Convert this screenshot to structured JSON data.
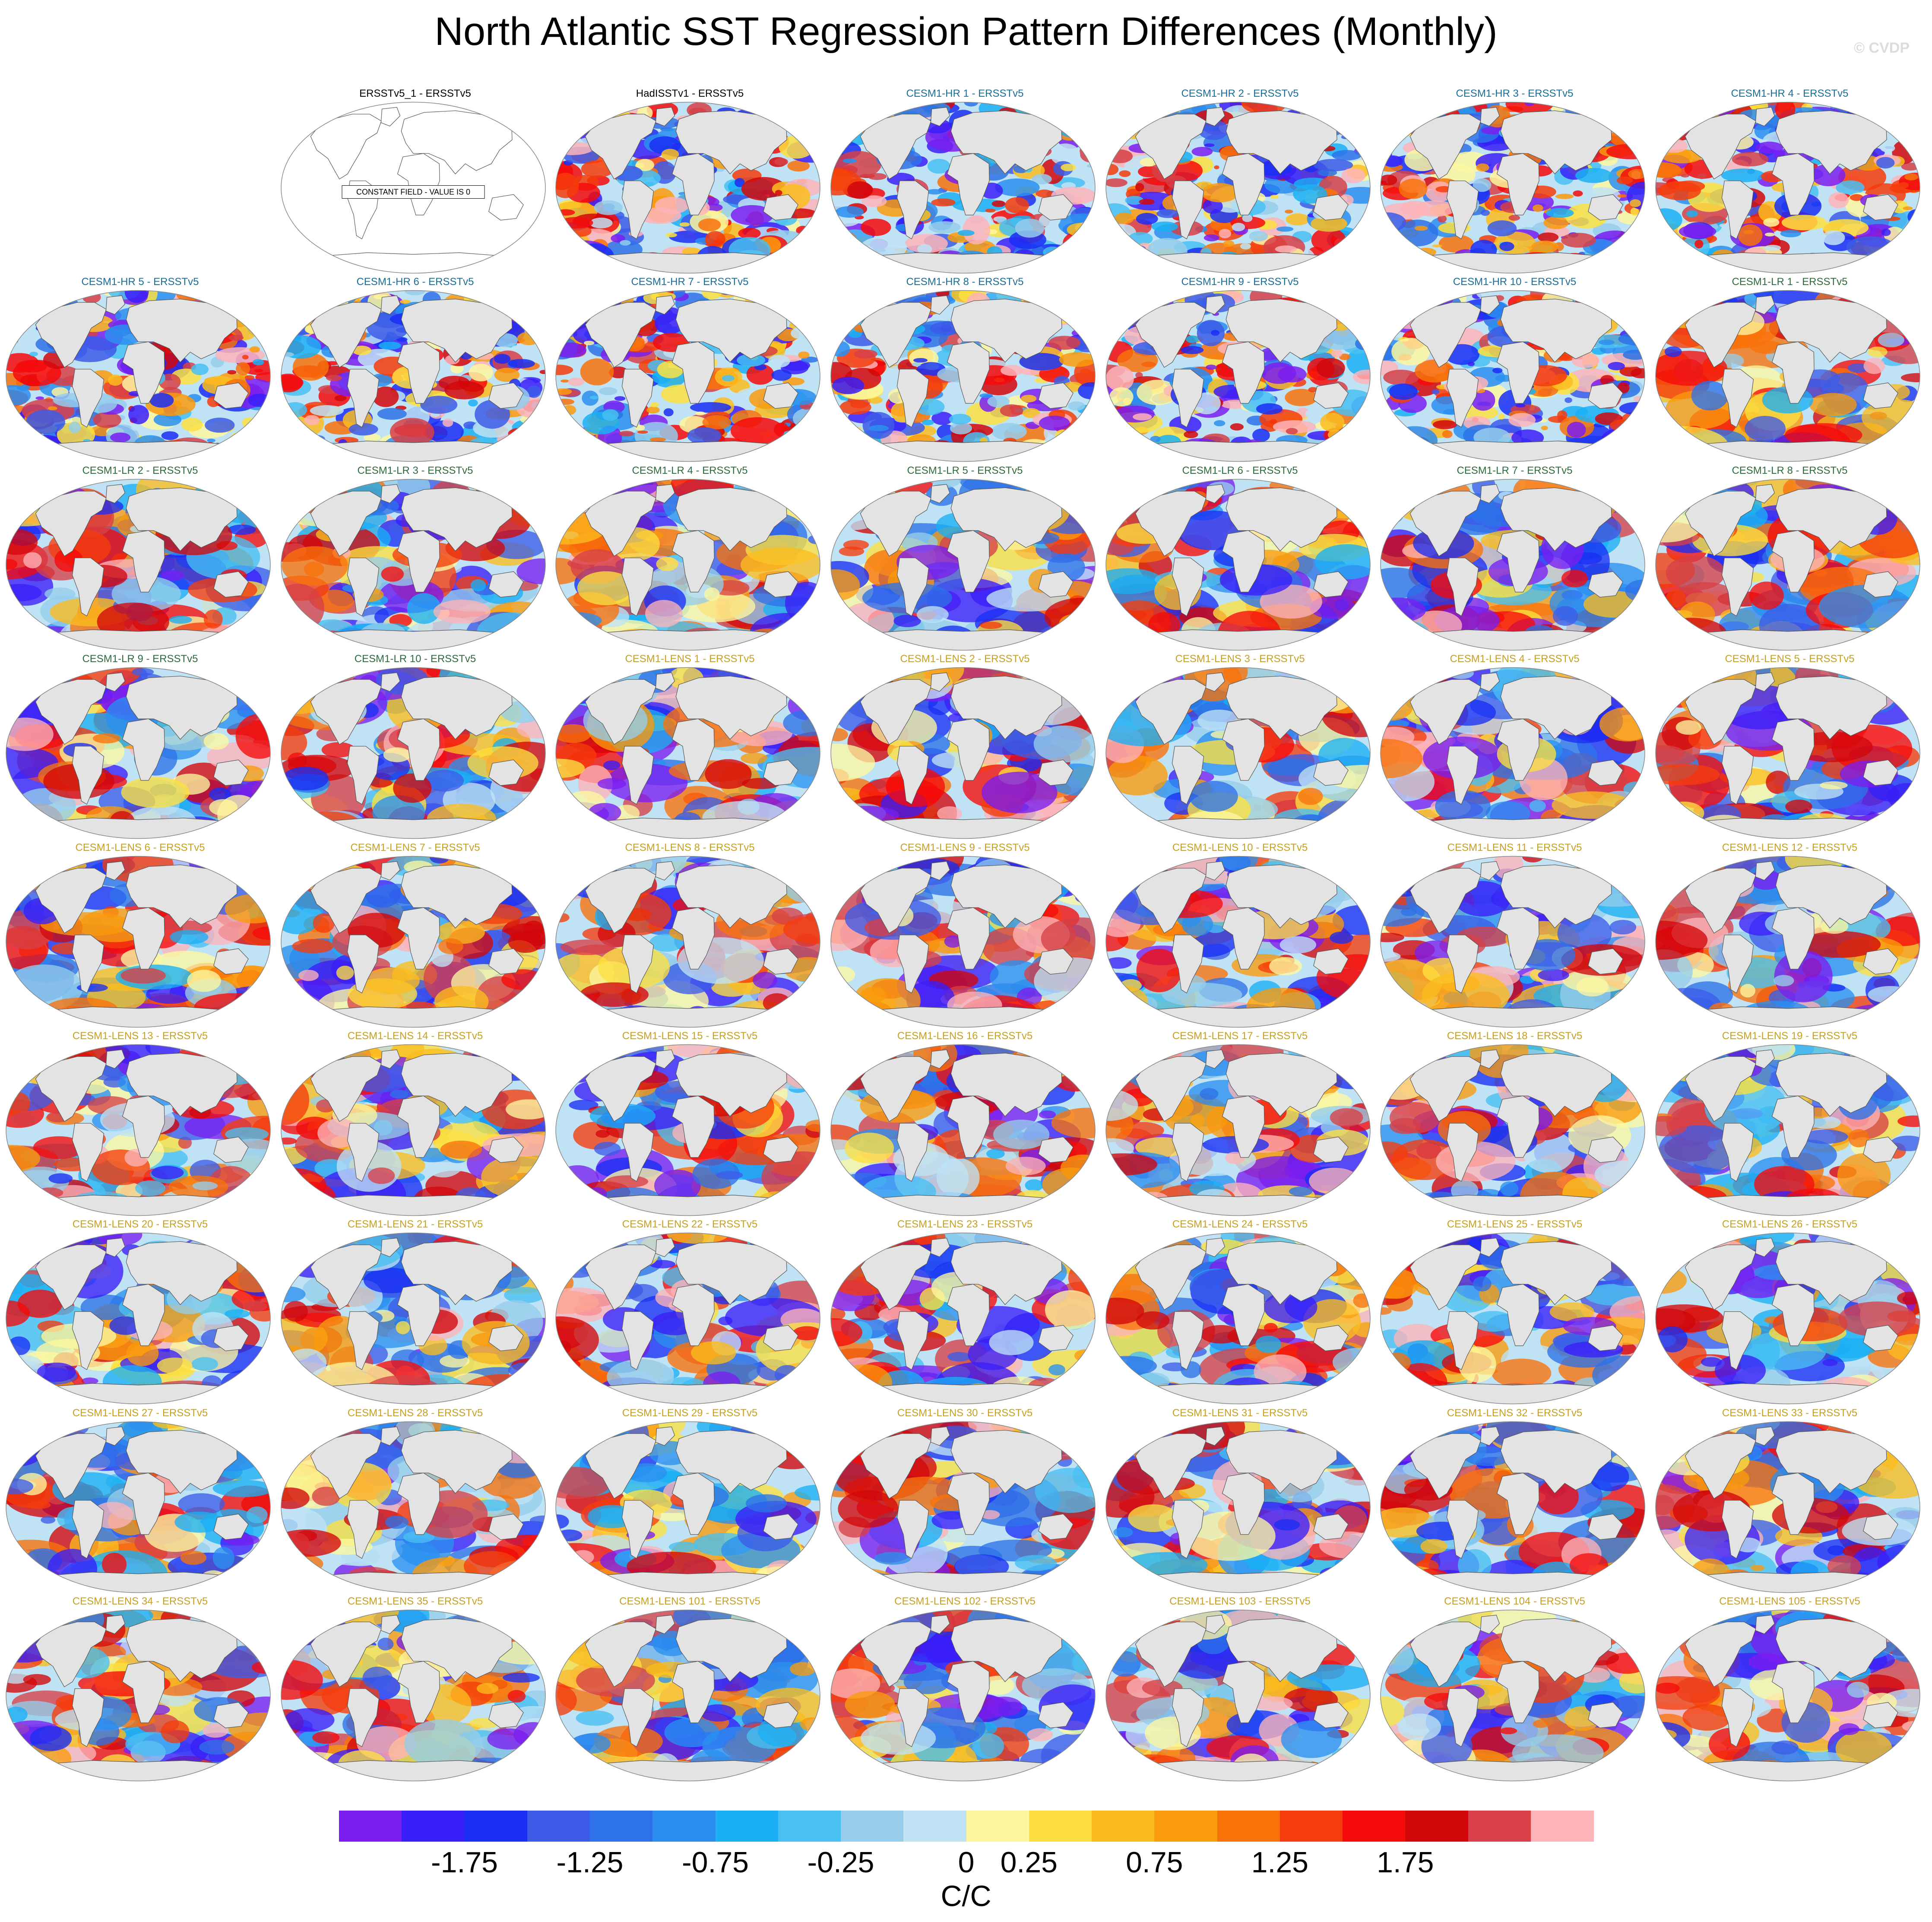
{
  "title": "North Atlantic SST Regression Pattern Differences (Monthly)",
  "credit": "© CVDP",
  "constant_field_note": "CONSTANT FIELD - VALUE IS 0",
  "colors": {
    "label_obs": "#000000",
    "label_hr": "#1a6e96",
    "label_lr": "#2e6b3c",
    "label_lens": "#c8a020",
    "land": "#e3e3e3",
    "coast": "#555555"
  },
  "panels": [
    {
      "label": "ERSSTv5_1 - ERSSTv5",
      "group": "obs",
      "constant": true
    },
    {
      "label": "HadISSTv1 - ERSSTv5",
      "group": "obs",
      "pattern": "noisy"
    },
    {
      "label": "CESM1-HR 1 - ERSSTv5",
      "group": "hr",
      "pattern": "noisy"
    },
    {
      "label": "CESM1-HR 2 - ERSSTv5",
      "group": "hr",
      "pattern": "noisy"
    },
    {
      "label": "CESM1-HR 3 - ERSSTv5",
      "group": "hr",
      "pattern": "noisy"
    },
    {
      "label": "CESM1-HR 4 - ERSSTv5",
      "group": "hr",
      "pattern": "noisy"
    },
    {
      "label": "CESM1-HR 5 - ERSSTv5",
      "group": "hr",
      "pattern": "noisy"
    },
    {
      "label": "CESM1-HR 6 - ERSSTv5",
      "group": "hr",
      "pattern": "noisy"
    },
    {
      "label": "CESM1-HR 7 - ERSSTv5",
      "group": "hr",
      "pattern": "noisy"
    },
    {
      "label": "CESM1-HR 8 - ERSSTv5",
      "group": "hr",
      "pattern": "noisy"
    },
    {
      "label": "CESM1-HR 9 - ERSSTv5",
      "group": "hr",
      "pattern": "noisy"
    },
    {
      "label": "CESM1-HR 10 - ERSSTv5",
      "group": "hr",
      "pattern": "noisy"
    },
    {
      "label": "CESM1-LR 1 - ERSSTv5",
      "group": "lr",
      "pattern": "smooth"
    },
    {
      "label": "CESM1-LR 2 - ERSSTv5",
      "group": "lr",
      "pattern": "smooth"
    },
    {
      "label": "CESM1-LR 3 - ERSSTv5",
      "group": "lr",
      "pattern": "smooth"
    },
    {
      "label": "CESM1-LR 4 - ERSSTv5",
      "group": "lr",
      "pattern": "smooth"
    },
    {
      "label": "CESM1-LR 5 - ERSSTv5",
      "group": "lr",
      "pattern": "smooth"
    },
    {
      "label": "CESM1-LR 6 - ERSSTv5",
      "group": "lr",
      "pattern": "smooth"
    },
    {
      "label": "CESM1-LR 7 - ERSSTv5",
      "group": "lr",
      "pattern": "smooth"
    },
    {
      "label": "CESM1-LR 8 - ERSSTv5",
      "group": "lr",
      "pattern": "smooth"
    },
    {
      "label": "CESM1-LR 9 - ERSSTv5",
      "group": "lr",
      "pattern": "smooth"
    },
    {
      "label": "CESM1-LR 10 - ERSSTv5",
      "group": "lr",
      "pattern": "smooth"
    },
    {
      "label": "CESM1-LENS 1 - ERSSTv5",
      "group": "lens",
      "pattern": "smooth"
    },
    {
      "label": "CESM1-LENS 2 - ERSSTv5",
      "group": "lens",
      "pattern": "smooth"
    },
    {
      "label": "CESM1-LENS 3 - ERSSTv5",
      "group": "lens",
      "pattern": "smooth"
    },
    {
      "label": "CESM1-LENS 4 - ERSSTv5",
      "group": "lens",
      "pattern": "smooth"
    },
    {
      "label": "CESM1-LENS 5 - ERSSTv5",
      "group": "lens",
      "pattern": "smooth"
    },
    {
      "label": "CESM1-LENS 6 - ERSSTv5",
      "group": "lens",
      "pattern": "smooth"
    },
    {
      "label": "CESM1-LENS 7 - ERSSTv5",
      "group": "lens",
      "pattern": "smooth"
    },
    {
      "label": "CESM1-LENS 8 - ERSSTv5",
      "group": "lens",
      "pattern": "smooth"
    },
    {
      "label": "CESM1-LENS 9 - ERSSTv5",
      "group": "lens",
      "pattern": "smooth"
    },
    {
      "label": "CESM1-LENS 10 - ERSSTv5",
      "group": "lens",
      "pattern": "smooth"
    },
    {
      "label": "CESM1-LENS 11 - ERSSTv5",
      "group": "lens",
      "pattern": "smooth"
    },
    {
      "label": "CESM1-LENS 12 - ERSSTv5",
      "group": "lens",
      "pattern": "smooth"
    },
    {
      "label": "CESM1-LENS 13 - ERSSTv5",
      "group": "lens",
      "pattern": "smooth"
    },
    {
      "label": "CESM1-LENS 14 - ERSSTv5",
      "group": "lens",
      "pattern": "smooth"
    },
    {
      "label": "CESM1-LENS 15 - ERSSTv5",
      "group": "lens",
      "pattern": "smooth"
    },
    {
      "label": "CESM1-LENS 16 - ERSSTv5",
      "group": "lens",
      "pattern": "smooth"
    },
    {
      "label": "CESM1-LENS 17 - ERSSTv5",
      "group": "lens",
      "pattern": "smooth"
    },
    {
      "label": "CESM1-LENS 18 - ERSSTv5",
      "group": "lens",
      "pattern": "smooth"
    },
    {
      "label": "CESM1-LENS 19 - ERSSTv5",
      "group": "lens",
      "pattern": "smooth"
    },
    {
      "label": "CESM1-LENS 20 - ERSSTv5",
      "group": "lens",
      "pattern": "smooth"
    },
    {
      "label": "CESM1-LENS 21 - ERSSTv5",
      "group": "lens",
      "pattern": "smooth"
    },
    {
      "label": "CESM1-LENS 22 - ERSSTv5",
      "group": "lens",
      "pattern": "smooth"
    },
    {
      "label": "CESM1-LENS 23 - ERSSTv5",
      "group": "lens",
      "pattern": "smooth"
    },
    {
      "label": "CESM1-LENS 24 - ERSSTv5",
      "group": "lens",
      "pattern": "smooth"
    },
    {
      "label": "CESM1-LENS 25 - ERSSTv5",
      "group": "lens",
      "pattern": "smooth"
    },
    {
      "label": "CESM1-LENS 26 - ERSSTv5",
      "group": "lens",
      "pattern": "smooth"
    },
    {
      "label": "CESM1-LENS 27 - ERSSTv5",
      "group": "lens",
      "pattern": "smooth"
    },
    {
      "label": "CESM1-LENS 28 - ERSSTv5",
      "group": "lens",
      "pattern": "smooth"
    },
    {
      "label": "CESM1-LENS 29 - ERSSTv5",
      "group": "lens",
      "pattern": "smooth"
    },
    {
      "label": "CESM1-LENS 30 - ERSSTv5",
      "group": "lens",
      "pattern": "smooth"
    },
    {
      "label": "CESM1-LENS 31 - ERSSTv5",
      "group": "lens",
      "pattern": "smooth"
    },
    {
      "label": "CESM1-LENS 32 - ERSSTv5",
      "group": "lens",
      "pattern": "smooth"
    },
    {
      "label": "CESM1-LENS 33 - ERSSTv5",
      "group": "lens",
      "pattern": "smooth"
    },
    {
      "label": "CESM1-LENS 34 - ERSSTv5",
      "group": "lens",
      "pattern": "smooth"
    },
    {
      "label": "CESM1-LENS 35 - ERSSTv5",
      "group": "lens",
      "pattern": "smooth"
    },
    {
      "label": "CESM1-LENS 101 - ERSSTv5",
      "group": "lens",
      "pattern": "smooth"
    },
    {
      "label": "CESM1-LENS 102 - ERSSTv5",
      "group": "lens",
      "pattern": "smooth"
    },
    {
      "label": "CESM1-LENS 103 - ERSSTv5",
      "group": "lens",
      "pattern": "smooth"
    },
    {
      "label": "CESM1-LENS 104 - ERSSTv5",
      "group": "lens",
      "pattern": "smooth"
    },
    {
      "label": "CESM1-LENS 105 - ERSSTv5",
      "group": "lens",
      "pattern": "smooth"
    }
  ],
  "chart_data": {
    "type": "heatmap",
    "title": "North Atlantic SST Regression Pattern Differences (Monthly)",
    "projection": "global robinson map panels",
    "grid": {
      "rows": 9,
      "columns": 7,
      "panel_count": 62,
      "first_row_offset_columns": 1
    },
    "colorbar": {
      "units": "C/C",
      "ticks": [
        -1.75,
        -1.25,
        -0.75,
        -0.25,
        0,
        0.25,
        0.75,
        1.25,
        1.75
      ],
      "tick_labels": [
        "-1.75",
        "-1.25",
        "-0.75",
        "-0.25",
        "0",
        "0.25",
        "0.75",
        "1.25",
        "1.75"
      ],
      "colors": [
        "#7a1ef0",
        "#3a1ef8",
        "#1a2ef4",
        "#3c5ce8",
        "#2d72e8",
        "#2a8ff0",
        "#1ab0f5",
        "#48c0f2",
        "#95cdeb",
        "#bfe3f5",
        "#fdf7a0",
        "#fde040",
        "#fbbd1e",
        "#fa9a0c",
        "#f8720a",
        "#f53c0c",
        "#f50a0a",
        "#d2070a",
        "#d64046",
        "#fdb4b8"
      ]
    }
  }
}
